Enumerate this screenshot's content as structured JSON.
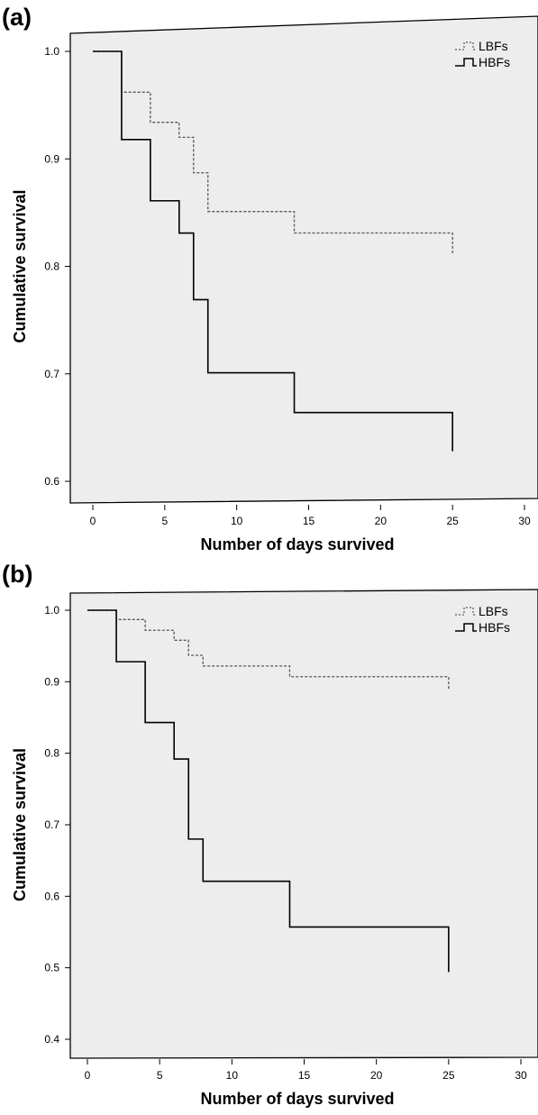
{
  "panels": [
    {
      "label": "(a)",
      "chart_data": {
        "type": "line",
        "step": true,
        "xlabel": "Number of days survived",
        "ylabel": "Cumulative survival",
        "xlim": [
          0,
          30
        ],
        "ylim": [
          0.6,
          1.0
        ],
        "xticks": [
          "0",
          "5",
          "10",
          "15",
          "20",
          "25",
          "30"
        ],
        "yticks": [
          "0.6",
          "0.7",
          "0.8",
          "0.9",
          "1.0"
        ],
        "grid": false,
        "legend_position": "top-right",
        "plot_background": "#ededed",
        "series": [
          {
            "name": "LBFs",
            "line_style": "dashed",
            "color": "#555555",
            "x": [
              0,
              2,
              4,
              6,
              7,
              8,
              14,
              25,
              25
            ],
            "y": [
              1.0,
              0.962,
              0.934,
              0.92,
              0.887,
              0.851,
              0.831,
              0.831,
              0.811
            ]
          },
          {
            "name": "HBFs",
            "line_style": "solid",
            "color": "#000000",
            "x": [
              0,
              2,
              4,
              6,
              7,
              8,
              14,
              25,
              25
            ],
            "y": [
              1.0,
              0.918,
              0.861,
              0.831,
              0.769,
              0.701,
              0.664,
              0.664,
              0.628
            ]
          }
        ]
      }
    },
    {
      "label": "(b)",
      "chart_data": {
        "type": "line",
        "step": true,
        "xlabel": "Number of days survived",
        "ylabel": "Cumulative survival",
        "xlim": [
          0,
          30
        ],
        "ylim": [
          0.4,
          1.0
        ],
        "xticks": [
          "0",
          "5",
          "10",
          "15",
          "20",
          "25",
          "30"
        ],
        "yticks": [
          "0.4",
          "0.5",
          "0.6",
          "0.7",
          "0.8",
          "0.9",
          "1.0"
        ],
        "grid": false,
        "legend_position": "top-right",
        "plot_background": "#ededed",
        "series": [
          {
            "name": "LBFs",
            "line_style": "dashed",
            "color": "#555555",
            "x": [
              0,
              2,
              4,
              6,
              7,
              8,
              14,
              25,
              25
            ],
            "y": [
              1.0,
              0.987,
              0.972,
              0.958,
              0.937,
              0.922,
              0.907,
              0.907,
              0.89
            ]
          },
          {
            "name": "HBFs",
            "line_style": "solid",
            "color": "#000000",
            "x": [
              0,
              2,
              4,
              6,
              7,
              8,
              14,
              25,
              25
            ],
            "y": [
              1.0,
              0.928,
              0.843,
              0.792,
              0.68,
              0.621,
              0.557,
              0.557,
              0.494
            ]
          }
        ]
      }
    }
  ]
}
